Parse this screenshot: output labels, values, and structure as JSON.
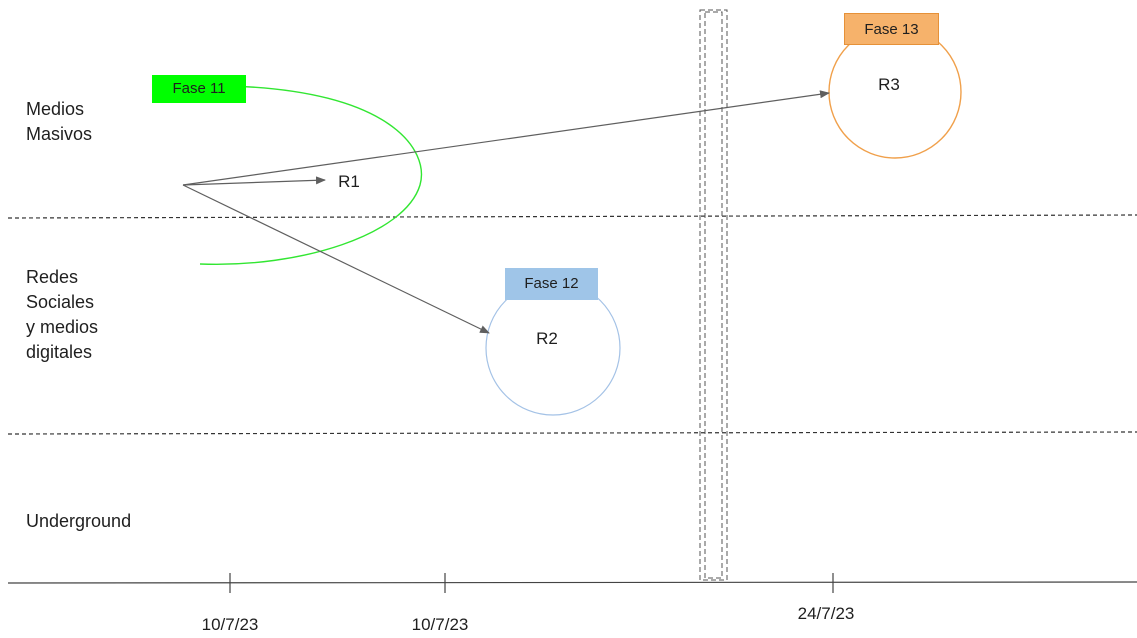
{
  "lanes": [
    {
      "label": "Medios\nMasivos"
    },
    {
      "label": "Redes\nSociales\ny medios\ndigitales"
    },
    {
      "label": "Underground"
    }
  ],
  "timeline": {
    "ticks": [
      "10/7/23",
      "10/7/23",
      "24/7/23"
    ]
  },
  "phases": [
    {
      "label": "Fase 11",
      "color": "#00ff00",
      "node_color": "#32e632"
    },
    {
      "label": "Fase 12",
      "color": "#9fc5e8",
      "node_color": "#a4c2e6"
    },
    {
      "label": "Fase 13",
      "color": "#f6b26b",
      "node_color": "#f0a04b"
    }
  ],
  "nodes": [
    {
      "label": "R1"
    },
    {
      "label": "R2"
    },
    {
      "label": "R3"
    }
  ],
  "colors": {
    "arrow": "#5f5f5f",
    "divider": "#333333",
    "axis": "#444444"
  }
}
